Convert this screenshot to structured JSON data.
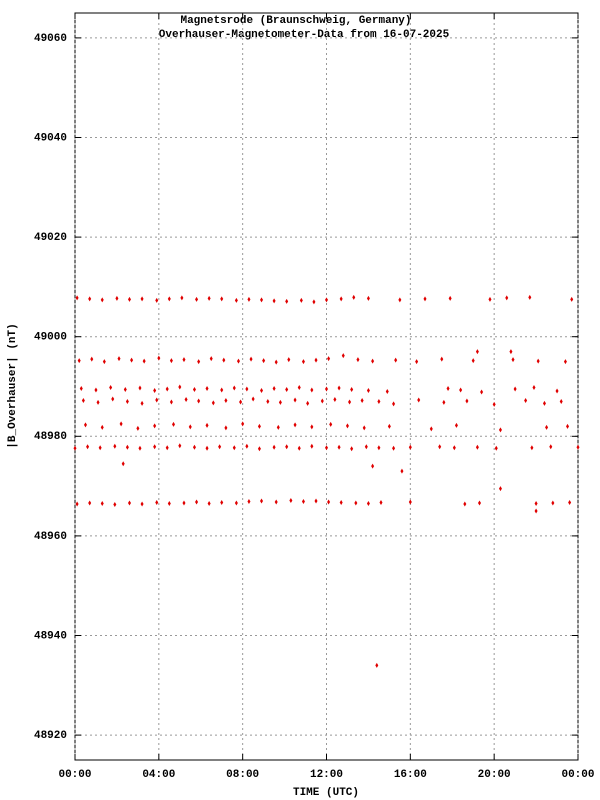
{
  "chart_data": {
    "type": "scatter",
    "title": "Magnetsrode (Braunschweig, Germany)",
    "subtitle": "Overhauser-Magnetometer-Data from 16-07-2025",
    "x_label": "TIME (UTC)",
    "y_label": "|B_Overhauser| (nT)",
    "color": "#e00000",
    "grid": true,
    "xlim": [
      0,
      24
    ],
    "xticks": [
      {
        "value": 0,
        "label": "00:00"
      },
      {
        "value": 4,
        "label": "04:00"
      },
      {
        "value": 8,
        "label": "08:00"
      },
      {
        "value": 12,
        "label": "12:00"
      },
      {
        "value": 16,
        "label": "16:00"
      },
      {
        "value": 20,
        "label": "20:00"
      },
      {
        "value": 24,
        "label": "00:00"
      }
    ],
    "ylim": [
      48915,
      49065
    ],
    "yticks": [
      48920,
      48940,
      48960,
      48980,
      49000,
      49020,
      49040,
      49060
    ],
    "x": [
      0.1,
      0.7,
      1.3,
      2.0,
      2.6,
      3.2,
      3.9,
      4.5,
      5.1,
      5.8,
      6.4,
      7.0,
      7.7,
      8.3,
      8.9,
      9.5,
      10.1,
      10.8,
      11.4,
      12.0,
      12.7,
      13.3,
      14.0,
      15.5,
      16.7,
      17.9,
      19.8,
      20.6,
      21.7,
      23.7,
      0.2,
      0.8,
      1.4,
      2.1,
      2.7,
      3.3,
      4.0,
      4.6,
      5.2,
      5.9,
      6.5,
      7.1,
      7.8,
      8.4,
      9.0,
      9.6,
      10.2,
      10.9,
      11.5,
      12.1,
      12.8,
      13.5,
      14.2,
      15.3,
      16.3,
      17.5,
      19.0,
      20.9,
      22.1,
      23.4,
      0.3,
      1.0,
      1.7,
      2.4,
      3.1,
      3.8,
      4.4,
      5.0,
      5.7,
      6.3,
      7.0,
      7.6,
      8.2,
      8.9,
      9.5,
      10.1,
      10.7,
      11.3,
      12.0,
      12.6,
      13.2,
      14.0,
      14.9,
      17.8,
      18.4,
      19.4,
      21.0,
      21.9,
      23.0,
      0.4,
      1.1,
      1.8,
      2.5,
      3.2,
      3.9,
      4.6,
      5.3,
      5.9,
      6.6,
      7.2,
      7.9,
      8.5,
      9.2,
      9.8,
      10.5,
      11.1,
      11.8,
      12.4,
      13.1,
      13.7,
      14.5,
      15.2,
      16.4,
      17.6,
      18.7,
      20.0,
      21.5,
      22.4,
      23.2,
      0.5,
      1.3,
      2.2,
      3.0,
      3.8,
      4.7,
      5.5,
      6.3,
      7.2,
      8.0,
      8.8,
      9.7,
      10.5,
      11.3,
      12.2,
      13.0,
      13.8,
      15.0,
      17.0,
      18.2,
      20.3,
      22.5,
      23.5,
      0.0,
      0.6,
      1.2,
      1.9,
      2.5,
      3.1,
      3.8,
      4.4,
      5.0,
      5.7,
      6.3,
      6.9,
      7.6,
      8.2,
      8.8,
      9.5,
      10.1,
      10.7,
      11.3,
      12.0,
      12.6,
      13.2,
      13.9,
      14.5,
      15.2,
      16.0,
      17.4,
      18.1,
      19.2,
      20.1,
      21.8,
      22.7,
      24.0,
      0.1,
      0.7,
      1.3,
      1.9,
      2.6,
      3.2,
      3.9,
      4.5,
      5.2,
      5.8,
      6.4,
      7.0,
      7.7,
      8.3,
      8.9,
      9.6,
      10.3,
      10.9,
      11.5,
      12.1,
      12.7,
      13.4,
      14.0,
      14.6,
      16.0,
      18.6,
      19.3,
      22.0,
      22.8,
      23.6,
      14.4,
      2.3,
      14.2,
      15.6,
      20.3,
      22.0,
      20.8,
      19.2
    ],
    "values": [
      49007.8,
      49007.6,
      49007.4,
      49007.7,
      49007.5,
      49007.6,
      49007.3,
      49007.6,
      49007.8,
      49007.5,
      49007.7,
      49007.6,
      49007.3,
      49007.5,
      49007.4,
      49007.2,
      49007.1,
      49007.3,
      49007.0,
      49007.4,
      49007.6,
      49007.9,
      49007.7,
      49007.4,
      49007.6,
      49007.7,
      49007.5,
      49007.8,
      49007.9,
      49007.5,
      48995.2,
      48995.5,
      48995.0,
      48995.6,
      48995.3,
      48995.1,
      48995.7,
      48995.2,
      48995.4,
      48995.0,
      48995.6,
      48995.3,
      48995.1,
      48995.5,
      48995.2,
      48994.9,
      48995.4,
      48995.0,
      48995.3,
      48995.6,
      48996.2,
      48995.4,
      48995.1,
      48995.3,
      48995.0,
      48995.5,
      48995.2,
      48995.4,
      48995.1,
      48995.0,
      48989.6,
      48989.3,
      48989.8,
      48989.4,
      48989.7,
      48989.2,
      48989.5,
      48989.9,
      48989.4,
      48989.6,
      48989.3,
      48989.7,
      48989.5,
      48989.2,
      48989.6,
      48989.4,
      48989.8,
      48989.3,
      48989.5,
      48989.7,
      48989.4,
      48989.2,
      48989.0,
      48989.6,
      48989.3,
      48988.9,
      48989.5,
      48989.8,
      48989.1,
      48987.2,
      48986.8,
      48987.5,
      48987.0,
      48986.6,
      48987.3,
      48986.9,
      48987.4,
      48987.1,
      48986.7,
      48987.2,
      48986.9,
      48987.5,
      48987.0,
      48986.8,
      48987.3,
      48986.6,
      48987.1,
      48987.4,
      48986.9,
      48987.2,
      48987.0,
      48986.5,
      48987.3,
      48986.8,
      48987.1,
      48986.4,
      48987.2,
      48986.6,
      48987.0,
      48982.3,
      48981.8,
      48982.5,
      48981.6,
      48982.1,
      48982.4,
      48981.9,
      48982.2,
      48981.7,
      48982.5,
      48982.0,
      48981.8,
      48982.3,
      48981.9,
      48982.4,
      48982.1,
      48981.7,
      48982.0,
      48981.5,
      48982.2,
      48981.3,
      48981.8,
      48982.0,
      48977.6,
      48977.9,
      48977.7,
      48978.0,
      48977.8,
      48977.6,
      48977.9,
      48977.7,
      48978.1,
      48977.8,
      48977.6,
      48977.9,
      48977.7,
      48978.0,
      48977.5,
      48977.8,
      48977.9,
      48977.6,
      48978.0,
      48977.7,
      48977.8,
      48977.5,
      48977.9,
      48977.7,
      48977.6,
      48977.8,
      48977.9,
      48977.7,
      48977.8,
      48977.6,
      48977.7,
      48977.9,
      48977.8,
      48966.4,
      48966.6,
      48966.5,
      48966.3,
      48966.6,
      48966.4,
      48966.7,
      48966.5,
      48966.6,
      48966.8,
      48966.5,
      48966.7,
      48966.6,
      48966.9,
      48967.0,
      48966.8,
      48967.1,
      48966.9,
      48967.0,
      48966.8,
      48966.7,
      48966.6,
      48966.5,
      48966.7,
      48966.8,
      48966.4,
      48966.6,
      48966.5,
      48966.6,
      48966.7,
      48934,
      48974.5,
      48974,
      48973,
      48969.5,
      48965,
      48997,
      48997
    ]
  }
}
